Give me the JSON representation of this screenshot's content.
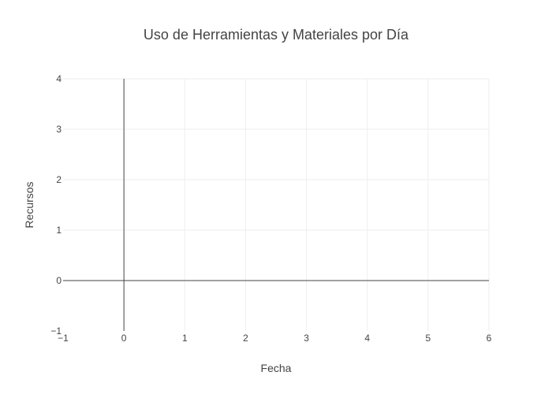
{
  "chart_data": {
    "type": "line",
    "title": "Uso de Herramientas y Materiales por Día",
    "xlabel": "Fecha",
    "ylabel": "Recursos",
    "xlim": [
      -1,
      6
    ],
    "ylim": [
      -1,
      4
    ],
    "x_ticks": [
      "−1",
      "0",
      "1",
      "2",
      "3",
      "4",
      "5",
      "6"
    ],
    "y_ticks": [
      "−1",
      "0",
      "1",
      "2",
      "3",
      "4"
    ],
    "x_tick_values": [
      -1,
      0,
      1,
      2,
      3,
      4,
      5,
      6
    ],
    "y_tick_values": [
      -1,
      0,
      1,
      2,
      3,
      4
    ],
    "series": [],
    "grid": true,
    "zero_lines": true,
    "colors": {
      "grid": "#eeeeee",
      "zero_line": "#444444",
      "text": "#444444"
    }
  }
}
